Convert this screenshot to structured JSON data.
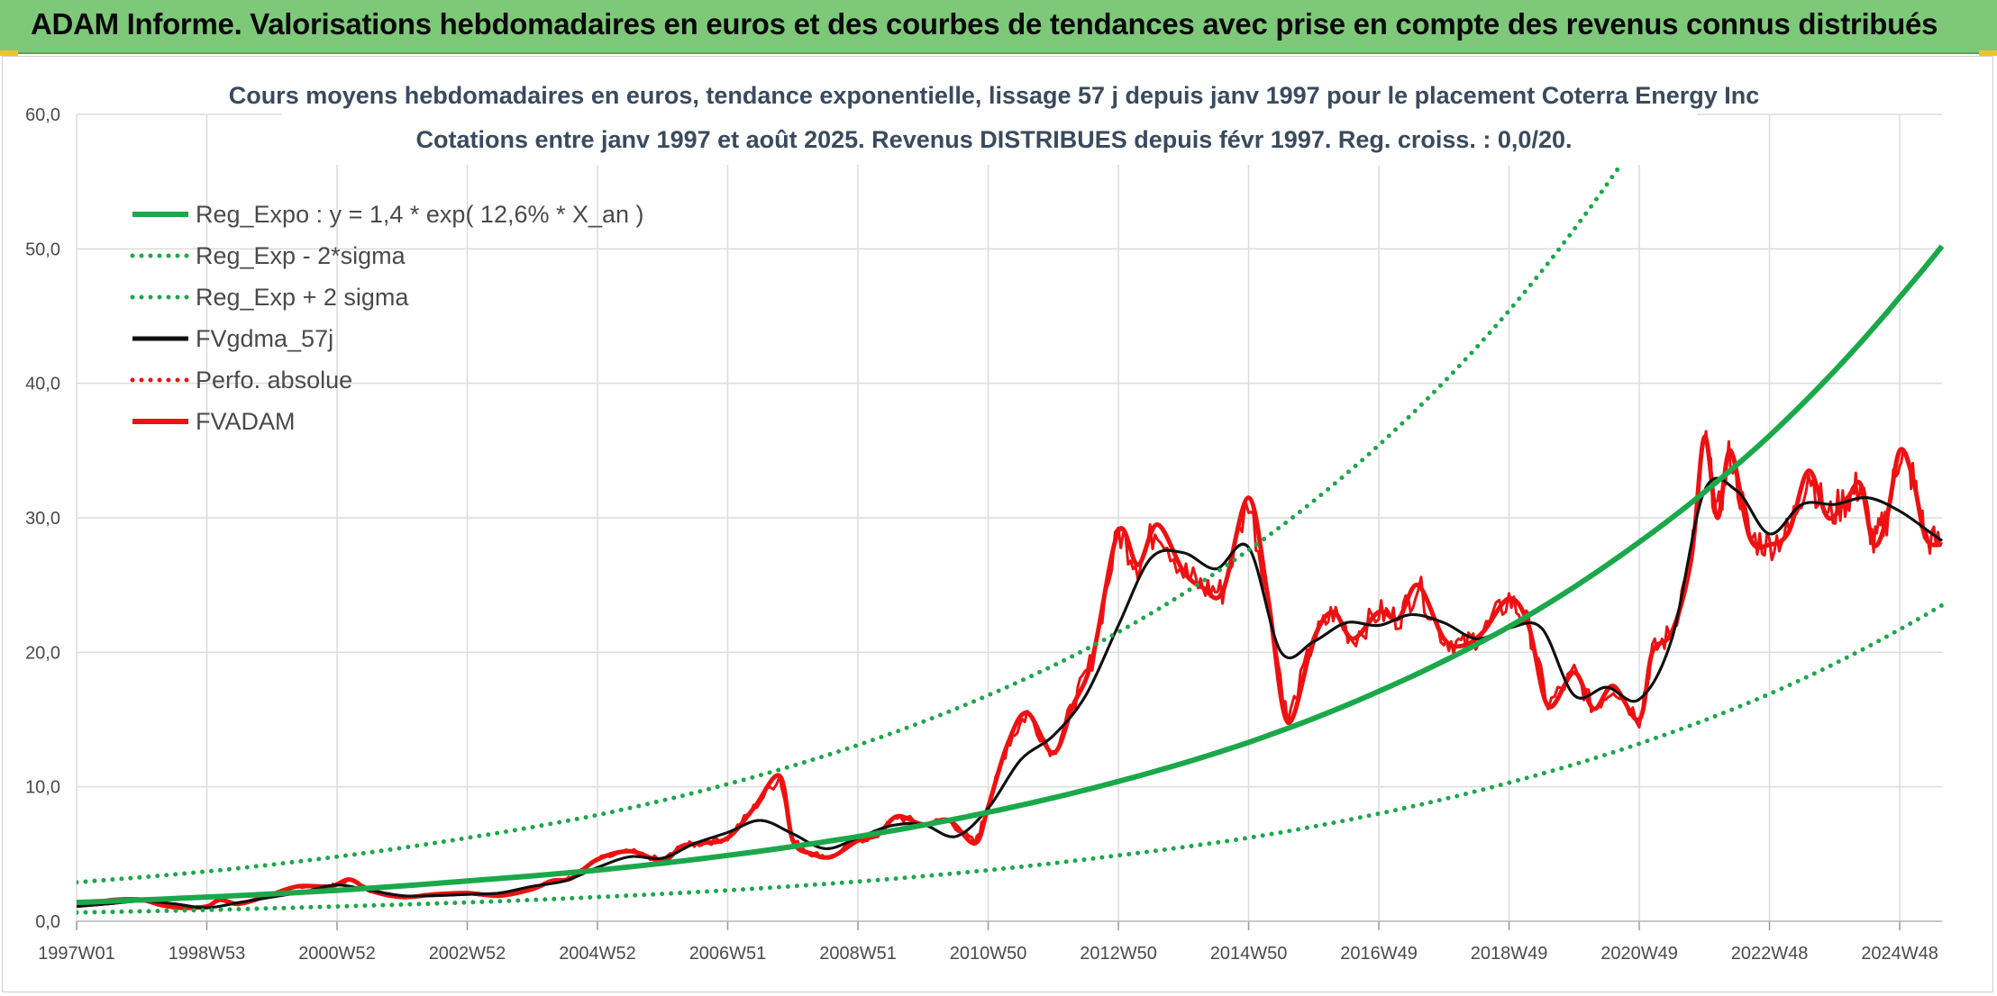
{
  "header": {
    "title": "ADAM Informe. Valorisations hebdomadaires en euros et des courbes de tendances avec prise en compte des revenus connus distribués"
  },
  "colors": {
    "header_bg": "#7ec87a",
    "green": "#1aa84b",
    "black": "#111111",
    "red": "#ee1111",
    "grid": "#dcdcdc"
  },
  "chart_data": {
    "type": "line",
    "title": "Cours moyens hebdomadaires en euros, tendance exponentielle, lissage 57 j depuis janv 1997 pour le placement Coterra Energy Inc",
    "subtitle": "Cotations entre janv 1997 et août 2025. Revenus DISTRIBUES depuis févr 1997. Reg. croiss. : 0,0/20.",
    "xlabel": "",
    "ylabel": "",
    "ylim": [
      0,
      60
    ],
    "xlim": [
      1997.0,
      2025.65
    ],
    "y_ticks": [
      "0,0",
      "10,0",
      "20,0",
      "30,0",
      "40,0",
      "50,0",
      "60,0"
    ],
    "x_tick_labels": [
      "1997W01",
      "1998W53",
      "2000W52",
      "2002W52",
      "2004W52",
      "2006W51",
      "2008W51",
      "2010W50",
      "2012W50",
      "2014W50",
      "2016W49",
      "2018W49",
      "2020W49",
      "2022W48",
      "2024W48"
    ],
    "x_tick_positions": [
      1997.0,
      1999.0,
      2001.0,
      2003.0,
      2005.0,
      2007.0,
      2009.0,
      2011.0,
      2013.0,
      2015.0,
      2017.0,
      2019.0,
      2021.0,
      2023.0,
      2025.0
    ],
    "grid": true,
    "legend_position": "top-left",
    "series": [
      {
        "name": "Reg_Expo : y = 1,4 * exp( 12,6% *  X_an )",
        "color": "#1aa84b",
        "style": "solid",
        "x": [
          1997.0,
          1999.0,
          2001.0,
          2003.0,
          2005.0,
          2007.0,
          2009.0,
          2011.0,
          2013.0,
          2015.0,
          2017.0,
          2019.0,
          2021.0,
          2023.0,
          2025.0,
          2025.65
        ],
        "values": [
          1.4,
          1.8,
          2.3,
          3.0,
          3.8,
          4.9,
          6.3,
          8.1,
          10.4,
          13.3,
          17.1,
          21.9,
          28.2,
          36.1,
          46.4,
          50.2
        ]
      },
      {
        "name": "Reg_Exp - 2*sigma",
        "color": "#1aa84b",
        "style": "dotted",
        "x": [
          1997.0,
          1999.0,
          2001.0,
          2003.0,
          2005.0,
          2007.0,
          2009.0,
          2011.0,
          2013.0,
          2015.0,
          2017.0,
          2019.0,
          2021.0,
          2023.0,
          2025.0,
          2025.65
        ],
        "values": [
          0.65,
          0.84,
          1.1,
          1.4,
          1.8,
          2.3,
          2.95,
          3.8,
          4.9,
          6.2,
          8.0,
          10.3,
          13.2,
          16.9,
          21.7,
          23.5
        ]
      },
      {
        "name": "Reg_Exp + 2 sigma",
        "color": "#1aa84b",
        "style": "dotted",
        "x": [
          1997.0,
          1999.0,
          2001.0,
          2003.0,
          2005.0,
          2007.0,
          2009.0,
          2011.0,
          2013.0,
          2015.0,
          2017.0,
          2019.0,
          2021.0,
          2022.0
        ],
        "values": [
          2.9,
          3.7,
          4.8,
          6.2,
          7.9,
          10.2,
          13.1,
          16.8,
          21.5,
          27.6,
          35.4,
          45.4,
          58.3,
          66.0
        ]
      },
      {
        "name": "FVgdma_57j",
        "color": "#111111",
        "style": "solid",
        "x": [
          1997.0,
          1997.5,
          1998.0,
          1998.5,
          1999.0,
          1999.5,
          2000.0,
          2000.5,
          2001.0,
          2001.5,
          2002.0,
          2002.5,
          2003.0,
          2003.5,
          2004.0,
          2004.5,
          2005.0,
          2005.5,
          2006.0,
          2006.5,
          2007.0,
          2007.5,
          2008.0,
          2008.5,
          2009.0,
          2009.5,
          2010.0,
          2010.5,
          2011.0,
          2011.5,
          2012.0,
          2012.5,
          2013.0,
          2013.5,
          2014.0,
          2014.5,
          2015.0,
          2015.5,
          2016.0,
          2016.5,
          2017.0,
          2017.5,
          2018.0,
          2018.5,
          2019.0,
          2019.5,
          2020.0,
          2020.5,
          2021.0,
          2021.5,
          2022.0,
          2022.5,
          2023.0,
          2023.5,
          2024.0,
          2024.5,
          2025.0,
          2025.5,
          2025.65
        ],
        "values": [
          1.1,
          1.3,
          1.5,
          1.3,
          1.0,
          1.4,
          1.8,
          2.2,
          2.7,
          2.3,
          1.9,
          1.9,
          2.0,
          2.1,
          2.6,
          3.0,
          4.0,
          4.8,
          4.7,
          5.8,
          6.6,
          7.5,
          6.5,
          5.4,
          6.2,
          7.1,
          7.2,
          6.3,
          8.4,
          12.0,
          13.8,
          16.8,
          22.0,
          27.0,
          27.4,
          26.2,
          27.8,
          20.0,
          20.8,
          22.2,
          22.0,
          22.8,
          22.2,
          21.0,
          21.8,
          21.8,
          16.8,
          17.4,
          16.5,
          21.0,
          32.0,
          32.0,
          28.8,
          31.0,
          31.0,
          31.5,
          30.5,
          28.8,
          28.3
        ]
      },
      {
        "name": "Perfo. absolue",
        "color": "#ee1111",
        "style": "dotted",
        "x": [],
        "values": []
      },
      {
        "name": "FVADAM",
        "color": "#ee1111",
        "style": "solid",
        "x": [
          1997.0,
          1997.3,
          1997.6,
          1998.0,
          1998.3,
          1998.6,
          1999.0,
          1999.2,
          1999.5,
          2000.0,
          2000.4,
          2000.9,
          2001.2,
          2001.5,
          2002.0,
          2002.5,
          2003.0,
          2003.5,
          2004.0,
          2004.3,
          2004.6,
          2005.0,
          2005.5,
          2006.0,
          2006.3,
          2006.6,
          2007.0,
          2007.4,
          2007.8,
          2008.0,
          2008.3,
          2008.6,
          2009.0,
          2009.3,
          2009.6,
          2010.0,
          2010.4,
          2010.8,
          2011.0,
          2011.3,
          2011.6,
          2012.0,
          2012.3,
          2012.6,
          2013.0,
          2013.3,
          2013.6,
          2014.0,
          2014.3,
          2014.6,
          2015.0,
          2015.3,
          2015.6,
          2016.0,
          2016.3,
          2016.6,
          2017.0,
          2017.3,
          2017.6,
          2018.0,
          2018.3,
          2018.6,
          2019.0,
          2019.3,
          2019.6,
          2020.0,
          2020.3,
          2020.6,
          2021.0,
          2021.2,
          2021.5,
          2021.8,
          2022.0,
          2022.2,
          2022.4,
          2022.7,
          2023.0,
          2023.3,
          2023.6,
          2023.9,
          2024.2,
          2024.4,
          2024.6,
          2024.8,
          2025.0,
          2025.2,
          2025.4,
          2025.65
        ],
        "values": [
          1.2,
          1.4,
          1.6,
          1.6,
          1.2,
          1.0,
          1.1,
          1.6,
          1.3,
          2.0,
          2.6,
          2.6,
          3.1,
          2.3,
          1.8,
          2.0,
          2.1,
          1.9,
          2.4,
          3.0,
          3.2,
          4.6,
          5.2,
          4.5,
          5.6,
          5.8,
          6.2,
          8.4,
          10.8,
          6.0,
          5.0,
          4.8,
          6.0,
          6.4,
          7.8,
          7.2,
          7.5,
          5.8,
          8.5,
          13.2,
          15.5,
          12.5,
          16.0,
          19.5,
          29.0,
          26.5,
          29.5,
          26.0,
          24.8,
          24.5,
          31.5,
          24.0,
          14.8,
          21.0,
          23.0,
          21.0,
          23.0,
          22.5,
          25.0,
          21.0,
          20.5,
          21.5,
          24.0,
          22.0,
          16.0,
          18.5,
          15.8,
          17.5,
          15.0,
          20.0,
          21.5,
          27.0,
          36.0,
          30.0,
          35.0,
          28.5,
          28.0,
          29.0,
          33.5,
          30.0,
          31.5,
          32.5,
          28.0,
          30.0,
          35.0,
          33.0,
          28.5,
          28.0
        ]
      }
    ]
  }
}
